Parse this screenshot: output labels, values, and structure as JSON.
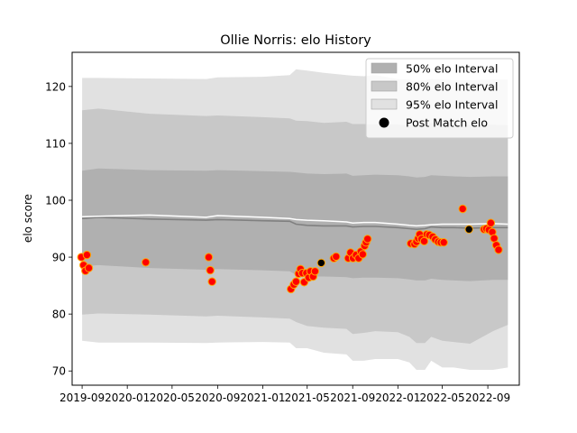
{
  "chart_data": {
    "type": "line",
    "title": "Ollie Norris: elo History",
    "xlabel": "",
    "ylabel": "elo score",
    "x_range": [
      "2019-08-05",
      "2022-11-25"
    ],
    "ylim": [
      67.5,
      126
    ],
    "x_ticks": [
      {
        "date": "2019-09-01",
        "label": "2019-09"
      },
      {
        "date": "2020-01-01",
        "label": "2020-01"
      },
      {
        "date": "2020-05-01",
        "label": "2020-05"
      },
      {
        "date": "2020-09-01",
        "label": "2020-09"
      },
      {
        "date": "2021-01-01",
        "label": "2021-01"
      },
      {
        "date": "2021-05-01",
        "label": "2021-05"
      },
      {
        "date": "2021-09-01",
        "label": "2021-09"
      },
      {
        "date": "2022-01-01",
        "label": "2022-01"
      },
      {
        "date": "2022-05-01",
        "label": "2022-05"
      },
      {
        "date": "2022-09-01",
        "label": "2022-09"
      }
    ],
    "y_ticks": [
      70,
      80,
      90,
      100,
      110,
      120
    ],
    "grid": false,
    "legend_position": "top-right",
    "legend": [
      {
        "label": "50% elo Interval",
        "kind": "band",
        "color": "#b0b0b0"
      },
      {
        "label": "80% elo Interval",
        "kind": "band",
        "color": "#c8c8c8"
      },
      {
        "label": "95% elo Interval",
        "kind": "band",
        "color": "#e1e1e1"
      },
      {
        "label": "Post Match elo",
        "kind": "marker",
        "color": "#000000"
      }
    ],
    "series": [
      {
        "kind": "band",
        "label": "95% elo Interval",
        "color": "#e1e1e1",
        "x": [
          "2019-09-01",
          "2019-10-15",
          "2020-03-01",
          "2020-08-01",
          "2020-09-01",
          "2021-01-01",
          "2021-03-15",
          "2021-04-01",
          "2021-05-01",
          "2021-06-15",
          "2021-08-15",
          "2021-09-01",
          "2021-10-01",
          "2021-11-01",
          "2022-01-01",
          "2022-02-01",
          "2022-02-20",
          "2022-03-15",
          "2022-04-01",
          "2022-05-01",
          "2022-06-01",
          "2022-07-15",
          "2022-09-15",
          "2022-10-25"
        ],
        "upper": [
          121.5,
          121.5,
          121.4,
          121.3,
          121.6,
          121.7,
          122.0,
          123.0,
          122.8,
          122.4,
          122.0,
          121.9,
          121.8,
          122.0,
          121.3,
          121.2,
          121.0,
          121.1,
          121.3,
          121.2,
          121.1,
          121.1,
          121.2,
          121.2
        ],
        "lower": [
          75.3,
          75.0,
          75.0,
          74.9,
          75.0,
          75.1,
          75.0,
          74.0,
          74.0,
          73.2,
          72.9,
          71.8,
          71.8,
          72.1,
          72.1,
          71.5,
          70.2,
          70.2,
          71.8,
          70.6,
          70.6,
          70.2,
          70.2,
          70.6
        ]
      },
      {
        "kind": "band",
        "label": "80% elo Interval",
        "color": "#c8c8c8",
        "x": [
          "2019-09-01",
          "2019-10-15",
          "2020-03-01",
          "2020-08-01",
          "2020-09-01",
          "2021-01-01",
          "2021-03-15",
          "2021-04-01",
          "2021-05-01",
          "2021-06-15",
          "2021-08-15",
          "2021-09-01",
          "2021-10-01",
          "2021-11-01",
          "2022-01-01",
          "2022-02-01",
          "2022-02-20",
          "2022-03-15",
          "2022-04-01",
          "2022-05-01",
          "2022-06-01",
          "2022-07-15",
          "2022-09-15",
          "2022-10-25"
        ],
        "upper": [
          115.8,
          116.1,
          115.2,
          114.8,
          114.9,
          114.6,
          114.4,
          114.0,
          113.9,
          113.6,
          113.8,
          113.4,
          113.4,
          113.3,
          113.3,
          113.2,
          113.1,
          113.2,
          113.6,
          113.4,
          113.4,
          113.2,
          113.3,
          113.2
        ],
        "lower": [
          79.9,
          80.1,
          79.9,
          79.6,
          79.7,
          79.4,
          79.2,
          78.6,
          77.9,
          77.6,
          77.4,
          76.5,
          76.7,
          77.0,
          76.8,
          76.0,
          74.9,
          74.9,
          76.0,
          75.3,
          75.1,
          74.8,
          77.0,
          78.1
        ]
      },
      {
        "kind": "band",
        "label": "50% elo Interval",
        "color": "#b0b0b0",
        "x": [
          "2019-09-01",
          "2019-10-15",
          "2020-03-01",
          "2020-08-01",
          "2020-09-01",
          "2021-01-01",
          "2021-03-15",
          "2021-04-01",
          "2021-05-01",
          "2021-06-15",
          "2021-08-15",
          "2021-09-01",
          "2021-10-01",
          "2021-11-01",
          "2022-01-01",
          "2022-02-01",
          "2022-02-20",
          "2022-03-15",
          "2022-04-01",
          "2022-05-01",
          "2022-06-01",
          "2022-07-15",
          "2022-09-15",
          "2022-10-25"
        ],
        "upper": [
          105.2,
          105.6,
          105.3,
          105.2,
          105.3,
          105.1,
          105.0,
          104.9,
          104.7,
          104.6,
          104.7,
          104.3,
          104.4,
          104.5,
          104.4,
          104.2,
          104.0,
          104.1,
          104.4,
          104.3,
          104.2,
          104.1,
          104.2,
          104.2
        ],
        "lower": [
          88.4,
          88.6,
          88.1,
          87.8,
          87.9,
          87.7,
          87.5,
          86.9,
          86.6,
          86.6,
          86.5,
          86.3,
          86.4,
          86.4,
          86.3,
          86.1,
          85.9,
          85.9,
          86.2,
          86.0,
          85.9,
          85.8,
          86.0,
          86.0
        ]
      },
      {
        "kind": "line",
        "label": "mean",
        "color": "#808080",
        "x": [
          "2019-09-01",
          "2019-10-15",
          "2020-03-01",
          "2020-08-01",
          "2020-09-01",
          "2021-01-01",
          "2021-03-15",
          "2021-04-01",
          "2021-05-01",
          "2021-06-15",
          "2021-08-15",
          "2021-09-01",
          "2021-10-01",
          "2021-11-01",
          "2022-01-01",
          "2022-02-01",
          "2022-02-20",
          "2022-03-15",
          "2022-04-01",
          "2022-05-01",
          "2022-06-01",
          "2022-07-15",
          "2022-09-15",
          "2022-10-25"
        ],
        "y": [
          96.8,
          97.0,
          96.7,
          96.5,
          96.6,
          96.4,
          96.3,
          95.8,
          95.6,
          95.5,
          95.5,
          95.3,
          95.4,
          95.4,
          95.2,
          95.0,
          94.9,
          95.0,
          95.3,
          95.2,
          95.2,
          95.1,
          95.2,
          95.2
        ]
      },
      {
        "kind": "line",
        "label": "mean-highlight",
        "color": "#ffffff",
        "x": [
          "2019-09-01",
          "2019-10-15",
          "2020-03-01",
          "2020-08-01",
          "2020-09-01",
          "2021-01-01",
          "2021-03-15",
          "2021-04-01",
          "2021-05-01",
          "2021-06-15",
          "2021-08-15",
          "2021-09-01",
          "2021-10-01",
          "2021-11-01",
          "2022-01-01",
          "2022-02-01",
          "2022-02-20",
          "2022-03-15",
          "2022-04-01",
          "2022-05-01",
          "2022-06-01",
          "2022-07-15",
          "2022-09-15",
          "2022-10-25"
        ],
        "y": [
          97.1,
          97.2,
          97.4,
          97.0,
          97.3,
          97.0,
          96.8,
          96.6,
          96.5,
          96.4,
          96.2,
          96.0,
          96.1,
          96.1,
          95.8,
          95.6,
          95.5,
          95.6,
          95.7,
          95.8,
          95.8,
          95.8,
          95.9,
          95.8
        ]
      },
      {
        "kind": "scatter",
        "label": "Post Match elo",
        "marker": "circle",
        "points": [
          {
            "x": "2019-08-30",
            "y": 90.0,
            "fill": "#ff0000"
          },
          {
            "x": "2019-09-05",
            "y": 88.6,
            "fill": "#ff0000"
          },
          {
            "x": "2019-09-10",
            "y": 87.6,
            "fill": "#ff0000"
          },
          {
            "x": "2019-09-14",
            "y": 90.4,
            "fill": "#ff0000"
          },
          {
            "x": "2019-09-19",
            "y": 88.1,
            "fill": "#ff0000"
          },
          {
            "x": "2020-02-20",
            "y": 89.1,
            "fill": "#ff0000"
          },
          {
            "x": "2020-08-08",
            "y": 90.0,
            "fill": "#ff0000"
          },
          {
            "x": "2020-08-12",
            "y": 87.7,
            "fill": "#ff0000"
          },
          {
            "x": "2020-08-17",
            "y": 85.7,
            "fill": "#ff0000"
          },
          {
            "x": "2021-03-18",
            "y": 84.4,
            "fill": "#ff0000"
          },
          {
            "x": "2021-03-26",
            "y": 85.2,
            "fill": "#ff0000"
          },
          {
            "x": "2021-04-01",
            "y": 85.7,
            "fill": "#ff0000"
          },
          {
            "x": "2021-04-08",
            "y": 87.1,
            "fill": "#ff0000"
          },
          {
            "x": "2021-04-13",
            "y": 87.9,
            "fill": "#ff0000"
          },
          {
            "x": "2021-04-18",
            "y": 87.2,
            "fill": "#ff0000"
          },
          {
            "x": "2021-04-23",
            "y": 85.6,
            "fill": "#ff0000"
          },
          {
            "x": "2021-04-29",
            "y": 87.2,
            "fill": "#ff0000"
          },
          {
            "x": "2021-05-05",
            "y": 86.4,
            "fill": "#ff0000"
          },
          {
            "x": "2021-05-10",
            "y": 87.5,
            "fill": "#ff0000"
          },
          {
            "x": "2021-05-17",
            "y": 86.6,
            "fill": "#ff0000"
          },
          {
            "x": "2021-05-22",
            "y": 87.5,
            "fill": "#ff0000"
          },
          {
            "x": "2021-06-08",
            "y": 89.0,
            "fill": "#000000"
          },
          {
            "x": "2021-07-12",
            "y": 89.8,
            "fill": "#ff0000"
          },
          {
            "x": "2021-07-18",
            "y": 90.1,
            "fill": "#ff0000"
          },
          {
            "x": "2021-08-20",
            "y": 89.8,
            "fill": "#ff0000"
          },
          {
            "x": "2021-08-26",
            "y": 90.8,
            "fill": "#ff0000"
          },
          {
            "x": "2021-09-02",
            "y": 89.8,
            "fill": "#ff0000"
          },
          {
            "x": "2021-09-10",
            "y": 90.4,
            "fill": "#ff0000"
          },
          {
            "x": "2021-09-17",
            "y": 89.8,
            "fill": "#ff0000"
          },
          {
            "x": "2021-09-23",
            "y": 91.0,
            "fill": "#ff0000"
          },
          {
            "x": "2021-09-28",
            "y": 90.5,
            "fill": "#ff0000"
          },
          {
            "x": "2021-10-03",
            "y": 92.0,
            "fill": "#ff0000"
          },
          {
            "x": "2021-10-07",
            "y": 92.6,
            "fill": "#ff0000"
          },
          {
            "x": "2021-10-11",
            "y": 93.2,
            "fill": "#ff0000"
          },
          {
            "x": "2022-02-05",
            "y": 92.4,
            "fill": "#ff0000"
          },
          {
            "x": "2022-02-15",
            "y": 92.3,
            "fill": "#ff0000"
          },
          {
            "x": "2022-02-20",
            "y": 92.7,
            "fill": "#ff0000"
          },
          {
            "x": "2022-02-25",
            "y": 93.3,
            "fill": "#ff0000"
          },
          {
            "x": "2022-03-01",
            "y": 94.0,
            "fill": "#ff0000"
          },
          {
            "x": "2022-03-06",
            "y": 93.2,
            "fill": "#ff0000"
          },
          {
            "x": "2022-03-13",
            "y": 92.8,
            "fill": "#ff0000"
          },
          {
            "x": "2022-03-20",
            "y": 94.0,
            "fill": "#ff0000"
          },
          {
            "x": "2022-03-27",
            "y": 93.9,
            "fill": "#ff0000"
          },
          {
            "x": "2022-04-05",
            "y": 93.6,
            "fill": "#ff0000"
          },
          {
            "x": "2022-04-12",
            "y": 93.1,
            "fill": "#ff0000"
          },
          {
            "x": "2022-04-20",
            "y": 92.7,
            "fill": "#ff0000"
          },
          {
            "x": "2022-04-27",
            "y": 92.6,
            "fill": "#ff0000"
          },
          {
            "x": "2022-05-05",
            "y": 92.6,
            "fill": "#ff0000"
          },
          {
            "x": "2022-06-25",
            "y": 98.5,
            "fill": "#ff0000"
          },
          {
            "x": "2022-07-12",
            "y": 94.9,
            "fill": "#000000"
          },
          {
            "x": "2022-08-22",
            "y": 94.9,
            "fill": "#ff0000"
          },
          {
            "x": "2022-08-28",
            "y": 95.0,
            "fill": "#ff0000"
          },
          {
            "x": "2022-09-04",
            "y": 94.8,
            "fill": "#ff0000"
          },
          {
            "x": "2022-09-09",
            "y": 96.0,
            "fill": "#ff0000"
          },
          {
            "x": "2022-09-13",
            "y": 94.4,
            "fill": "#ff0000"
          },
          {
            "x": "2022-09-18",
            "y": 93.3,
            "fill": "#ff0000"
          },
          {
            "x": "2022-09-24",
            "y": 92.1,
            "fill": "#ff0000"
          },
          {
            "x": "2022-09-30",
            "y": 91.3,
            "fill": "#ff0000"
          }
        ],
        "edge_color": "#ffa500"
      }
    ]
  }
}
